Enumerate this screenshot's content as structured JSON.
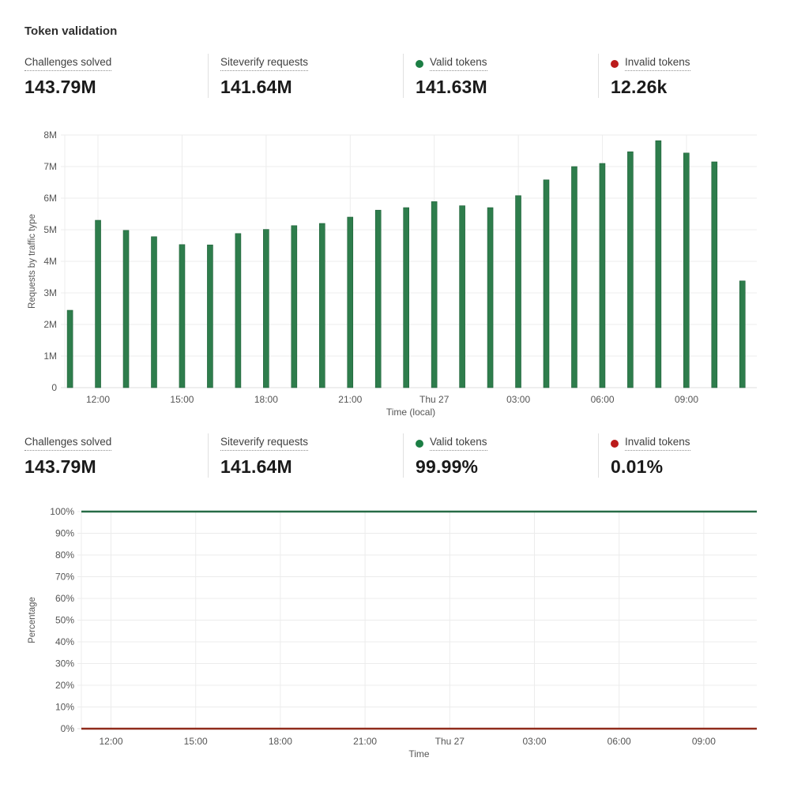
{
  "page": {
    "title": "Token validation"
  },
  "colors": {
    "green_dot": "#1b7e44",
    "red_dot": "#bb1b1b",
    "bar_green": "#2e7d4c",
    "bar_edge": "#1e6038",
    "line_green": "#276b46",
    "line_red": "#8f2b1b",
    "grid": "#ececec",
    "axis_line": "#dcdcdc",
    "axis_text": "#555555"
  },
  "stats_top": {
    "items": [
      {
        "label": "Challenges solved",
        "value": "143.79M",
        "dot": "none"
      },
      {
        "label": "Siteverify requests",
        "value": "141.64M",
        "dot": "none"
      },
      {
        "label": "Valid tokens",
        "value": "141.63M",
        "dot": "green"
      },
      {
        "label": "Invalid tokens",
        "value": "12.26k",
        "dot": "red"
      }
    ]
  },
  "stats_bottom": {
    "items": [
      {
        "label": "Challenges solved",
        "value": "143.79M",
        "dot": "none"
      },
      {
        "label": "Siteverify requests",
        "value": "141.64M",
        "dot": "none"
      },
      {
        "label": "Valid tokens",
        "value": "99.99%",
        "dot": "green"
      },
      {
        "label": "Invalid tokens",
        "value": "0.01%",
        "dot": "red"
      }
    ]
  },
  "chart_data": [
    {
      "type": "bar",
      "name": "requests-by-traffic-type",
      "series_name": "Valid tokens",
      "ylabel": "Requests by traffic type",
      "xlabel": "Time (local)",
      "ylim_millions": [
        0,
        8
      ],
      "ytick_labels": [
        "0",
        "1M",
        "2M",
        "3M",
        "4M",
        "5M",
        "6M",
        "7M",
        "8M"
      ],
      "xtick_labels": [
        "12:00",
        "15:00",
        "18:00",
        "21:00",
        "Thu 27",
        "03:00",
        "06:00",
        "09:00"
      ],
      "x_hours": [
        "11:00",
        "12:00",
        "13:00",
        "14:00",
        "15:00",
        "16:00",
        "17:00",
        "18:00",
        "19:00",
        "20:00",
        "21:00",
        "22:00",
        "23:00",
        "Thu 27 00:00",
        "01:00",
        "02:00",
        "03:00",
        "04:00",
        "05:00",
        "06:00",
        "07:00",
        "08:00",
        "09:00",
        "10:00",
        "11:00"
      ],
      "values_millions": [
        2.45,
        5.3,
        4.98,
        4.78,
        4.53,
        4.52,
        4.88,
        5.01,
        5.13,
        5.2,
        5.4,
        5.62,
        5.7,
        5.89,
        5.76,
        5.7,
        6.08,
        6.58,
        7.0,
        7.1,
        7.47,
        7.82,
        7.43,
        7.15,
        3.38
      ],
      "grid": true,
      "legend": "none"
    },
    {
      "type": "line",
      "name": "token-validity-percentage",
      "ylabel": "Percentage",
      "xlabel": "Time",
      "ylim": [
        0,
        100
      ],
      "ytick_labels": [
        "0%",
        "10%",
        "20%",
        "30%",
        "40%",
        "50%",
        "60%",
        "70%",
        "80%",
        "90%",
        "100%"
      ],
      "xtick_labels": [
        "12:00",
        "15:00",
        "18:00",
        "21:00",
        "Thu 27",
        "03:00",
        "06:00",
        "09:00"
      ],
      "series": [
        {
          "name": "Valid tokens",
          "color": "#276b46",
          "constant_value": 100
        },
        {
          "name": "Invalid tokens",
          "color": "#8f2b1b",
          "constant_value": 0
        }
      ],
      "grid": true,
      "legend": "none"
    }
  ]
}
